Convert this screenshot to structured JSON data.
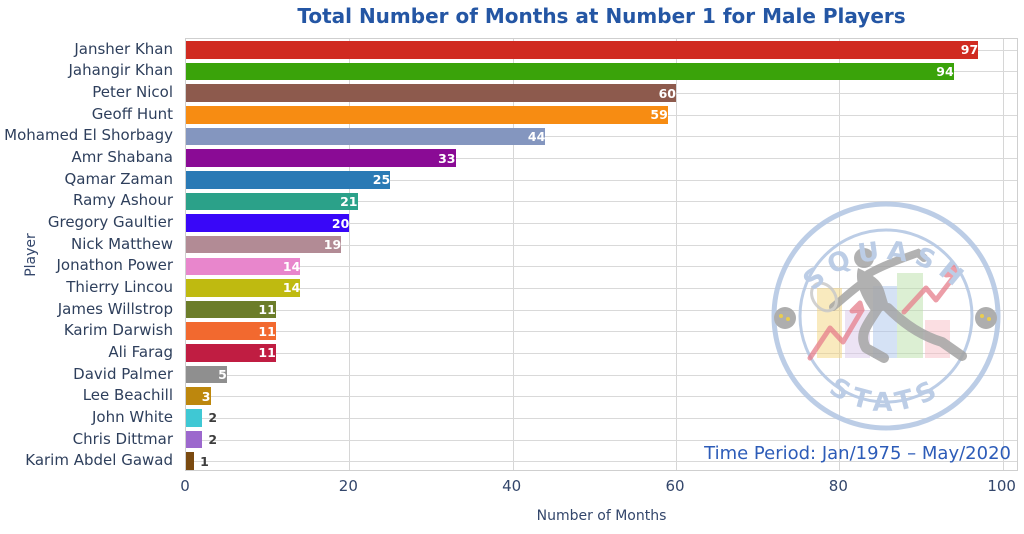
{
  "title": "Total Number of Months at Number 1 for Male Players",
  "annotation": "Time Period: Jan/1975 – May/2020",
  "watermark": {
    "top_text": "SQUASH",
    "bottom_text": "STATS"
  },
  "colors": {
    "title": "#2456a4",
    "axis_text": "#33466b",
    "category_text": "#2e3f5c",
    "annotation": "#2d5cb8",
    "grid": "#d6d6d6",
    "bar_label_inside": "#ffffff",
    "bar_label_outside": "#3d3d3d"
  },
  "chart_data": {
    "type": "bar",
    "orientation": "horizontal",
    "title": "Total Number of Months at Number 1 for Male Players",
    "xlabel": "Number of Months",
    "ylabel": "Player",
    "xlim": [
      0,
      102
    ],
    "xticks": [
      0,
      20,
      40,
      60,
      80,
      100
    ],
    "grid": true,
    "annotation": "Time Period: Jan/1975 – May/2020",
    "categories": [
      "Jansher Khan",
      "Jahangir Khan",
      "Peter Nicol",
      "Geoff Hunt",
      "Mohamed El Shorbagy",
      "Amr Shabana",
      "Qamar Zaman",
      "Ramy Ashour",
      "Gregory Gaultier",
      "Nick Matthew",
      "Jonathon Power",
      "Thierry Lincou",
      "James Willstrop",
      "Karim Darwish",
      "Ali Farag",
      "David Palmer",
      "Lee Beachill",
      "John White",
      "Chris Dittmar",
      "Karim Abdel Gawad"
    ],
    "values": [
      97,
      94,
      60,
      59,
      44,
      33,
      25,
      21,
      20,
      19,
      14,
      14,
      11,
      11,
      11,
      5,
      3,
      2,
      2,
      1
    ],
    "bar_colors": [
      "#d02b21",
      "#3aa30a",
      "#8d5a4d",
      "#f78c12",
      "#8496bf",
      "#8a0b95",
      "#2a7ab5",
      "#2ba189",
      "#3907f8",
      "#b28b95",
      "#e886cc",
      "#bfba10",
      "#6c7d2a",
      "#f2692f",
      "#c01d42",
      "#8f8f8f",
      "#bd870d",
      "#3fc8d4",
      "#9c68cd",
      "#7a4a10"
    ],
    "value_label_inside_min": 3
  }
}
